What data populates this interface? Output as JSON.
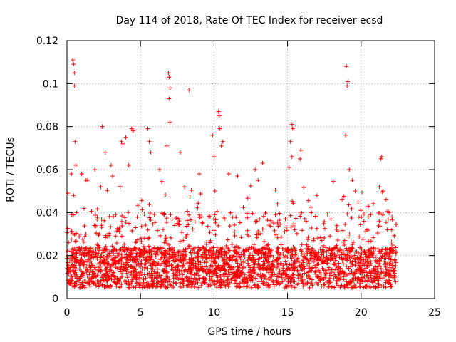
{
  "chart_data": {
    "type": "scatter",
    "title": "Day 114 of 2018, Rate Of TEC Index for receiver ecsd",
    "xlabel": "GPS time / hours",
    "ylabel": "ROTI / TECUs",
    "xlim": [
      0,
      25
    ],
    "ylim": [
      0,
      0.12
    ],
    "xticks": [
      0,
      5,
      10,
      15,
      20,
      25
    ],
    "xtick_labels": [
      "0",
      "5",
      "10",
      "15",
      "20",
      "25"
    ],
    "yticks": [
      0,
      0.02,
      0.04,
      0.06,
      0.08,
      0.1,
      0.12
    ],
    "ytick_labels": [
      "0",
      "0.02",
      "0.04",
      "0.06",
      "0.08",
      "0.1",
      "0.12"
    ],
    "grid": true,
    "marker": "plus",
    "color": "#ff0000",
    "series": [
      {
        "name": "ROTI",
        "x_range": [
          0,
          22.4
        ],
        "typical_range": [
          0.005,
          0.03
        ],
        "points": [
          [
            0.4,
            0.111
          ],
          [
            0.45,
            0.109
          ],
          [
            0.5,
            0.105
          ],
          [
            0.5,
            0.099
          ],
          [
            0.55,
            0.073
          ],
          [
            0.3,
            0.058
          ],
          [
            0.6,
            0.062
          ],
          [
            0.45,
            0.048
          ],
          [
            1.0,
            0.058
          ],
          [
            1.3,
            0.055
          ],
          [
            1.9,
            0.06
          ],
          [
            2.4,
            0.08
          ],
          [
            2.6,
            0.068
          ],
          [
            2.3,
            0.052
          ],
          [
            3.0,
            0.062
          ],
          [
            3.1,
            0.057
          ],
          [
            3.7,
            0.073
          ],
          [
            3.8,
            0.072
          ],
          [
            4.0,
            0.075
          ],
          [
            4.4,
            0.079
          ],
          [
            4.5,
            0.078
          ],
          [
            4.2,
            0.062
          ],
          [
            5.5,
            0.079
          ],
          [
            5.6,
            0.073
          ],
          [
            5.7,
            0.068
          ],
          [
            6.3,
            0.06
          ],
          [
            6.9,
            0.105
          ],
          [
            6.95,
            0.103
          ],
          [
            7.0,
            0.098
          ],
          [
            6.95,
            0.093
          ],
          [
            7.0,
            0.082
          ],
          [
            6.8,
            0.071
          ],
          [
            7.7,
            0.068
          ],
          [
            8.3,
            0.097
          ],
          [
            8.0,
            0.052
          ],
          [
            9.0,
            0.058
          ],
          [
            9.9,
            0.076
          ],
          [
            10.0,
            0.066
          ],
          [
            10.3,
            0.087
          ],
          [
            10.35,
            0.085
          ],
          [
            10.4,
            0.079
          ],
          [
            10.6,
            0.073
          ],
          [
            10.5,
            0.071
          ],
          [
            11.0,
            0.058
          ],
          [
            11.6,
            0.057
          ],
          [
            12.8,
            0.06
          ],
          [
            13.3,
            0.063
          ],
          [
            13.0,
            0.055
          ],
          [
            15.3,
            0.081
          ],
          [
            15.35,
            0.079
          ],
          [
            15.2,
            0.073
          ],
          [
            15.3,
            0.066
          ],
          [
            15.1,
            0.061
          ],
          [
            15.9,
            0.069
          ],
          [
            15.85,
            0.065
          ],
          [
            17.0,
            0.048
          ],
          [
            19.0,
            0.108
          ],
          [
            19.1,
            0.101
          ],
          [
            19.05,
            0.099
          ],
          [
            18.95,
            0.076
          ],
          [
            19.2,
            0.06
          ],
          [
            19.4,
            0.055
          ],
          [
            19.6,
            0.05
          ],
          [
            21.4,
            0.066
          ],
          [
            21.35,
            0.065
          ],
          [
            21.5,
            0.05
          ],
          [
            21.7,
            0.046
          ],
          [
            21.9,
            0.04
          ],
          [
            22.1,
            0.038
          ],
          [
            20.5,
            0.043
          ]
        ]
      }
    ]
  }
}
